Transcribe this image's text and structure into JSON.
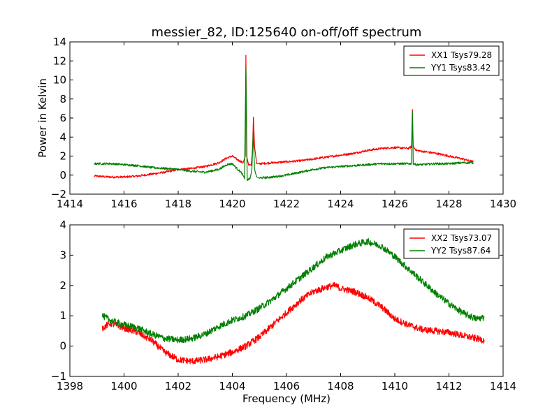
{
  "chart_data": [
    {
      "type": "line",
      "title": "messier_82, ID:125640 on-off/off spectrum",
      "xlabel": "",
      "ylabel": "Power in Kelvin",
      "xlim": [
        1414,
        1430
      ],
      "ylim": [
        -2,
        14
      ],
      "xticks": [
        "1414",
        "1416",
        "1418",
        "1420",
        "1422",
        "1424",
        "1426",
        "1428",
        "1430"
      ],
      "yticks": [
        "−2",
        "0",
        "2",
        "4",
        "6",
        "8",
        "10",
        "12",
        "14"
      ],
      "legend_position": "upper right",
      "series": [
        {
          "name": "XX1 Tsys79.28",
          "color": "#ff0000",
          "x": [
            1414.9,
            1415.5,
            1416.0,
            1416.5,
            1417.0,
            1417.5,
            1418.0,
            1418.5,
            1419.0,
            1419.5,
            1419.8,
            1420.0,
            1420.2,
            1420.4,
            1420.48,
            1420.5,
            1420.53,
            1420.6,
            1420.7,
            1420.75,
            1420.78,
            1420.82,
            1420.9,
            1421.0,
            1421.5,
            1422.0,
            1422.5,
            1423.0,
            1423.5,
            1424.0,
            1424.5,
            1425.0,
            1425.5,
            1426.0,
            1426.5,
            1426.62,
            1426.65,
            1426.68,
            1426.8,
            1427.0,
            1427.5,
            1428.0,
            1428.5,
            1428.9
          ],
          "y": [
            -0.1,
            -0.2,
            -0.2,
            -0.1,
            0.1,
            0.3,
            0.6,
            0.7,
            0.9,
            1.3,
            1.8,
            2.0,
            1.6,
            1.3,
            2.0,
            12.6,
            2.0,
            1.1,
            1.0,
            3.0,
            6.1,
            3.0,
            1.2,
            1.2,
            1.3,
            1.4,
            1.5,
            1.7,
            1.9,
            2.1,
            2.3,
            2.6,
            2.8,
            2.9,
            2.8,
            3.0,
            6.9,
            3.0,
            2.6,
            2.5,
            2.3,
            2.0,
            1.7,
            1.4
          ]
        },
        {
          "name": "YY1 Tsys83.42",
          "color": "#008000",
          "x": [
            1414.9,
            1415.5,
            1416.0,
            1416.5,
            1417.0,
            1417.5,
            1418.0,
            1418.5,
            1419.0,
            1419.5,
            1419.8,
            1420.0,
            1420.2,
            1420.35,
            1420.45,
            1420.5,
            1420.55,
            1420.65,
            1420.72,
            1420.77,
            1420.82,
            1420.9,
            1421.0,
            1421.5,
            1422.0,
            1422.5,
            1423.0,
            1423.5,
            1424.0,
            1424.5,
            1425.0,
            1425.5,
            1426.0,
            1426.5,
            1426.62,
            1426.65,
            1426.68,
            1426.8,
            1427.0,
            1427.5,
            1428.0,
            1428.5,
            1428.9
          ],
          "y": [
            1.2,
            1.2,
            1.1,
            1.0,
            0.8,
            0.7,
            0.6,
            0.4,
            0.3,
            0.6,
            1.1,
            1.2,
            0.6,
            0.2,
            -0.4,
            11.2,
            -0.5,
            -0.4,
            0.5,
            4.5,
            0.6,
            -0.2,
            -0.3,
            -0.2,
            0.0,
            0.3,
            0.6,
            0.8,
            0.9,
            1.0,
            1.1,
            1.2,
            1.2,
            1.2,
            1.2,
            6.7,
            1.2,
            1.1,
            1.1,
            1.2,
            1.2,
            1.3,
            1.3
          ]
        }
      ]
    },
    {
      "type": "line",
      "title": "",
      "xlabel": "Frequency (MHz)",
      "ylabel": "",
      "xlim": [
        1398,
        1414
      ],
      "ylim": [
        -1,
        4
      ],
      "xticks": [
        "1398",
        "1400",
        "1402",
        "1404",
        "1406",
        "1408",
        "1410",
        "1412",
        "1414"
      ],
      "yticks": [
        "−1",
        "0",
        "1",
        "2",
        "3",
        "4"
      ],
      "legend_position": "upper right",
      "series": [
        {
          "name": "XX2 Tsys73.07",
          "color": "#ff0000",
          "x": [
            1399.2,
            1399.5,
            1400.0,
            1400.5,
            1401.0,
            1401.5,
            1402.0,
            1402.5,
            1403.0,
            1403.5,
            1404.0,
            1404.5,
            1405.0,
            1405.5,
            1406.0,
            1406.5,
            1407.0,
            1407.5,
            1407.8,
            1408.0,
            1408.5,
            1409.0,
            1409.5,
            1410.0,
            1410.5,
            1411.0,
            1411.5,
            1412.0,
            1412.5,
            1413.0,
            1413.3
          ],
          "y": [
            0.6,
            0.75,
            0.6,
            0.45,
            0.2,
            -0.2,
            -0.45,
            -0.5,
            -0.45,
            -0.35,
            -0.2,
            0.0,
            0.3,
            0.7,
            1.1,
            1.5,
            1.8,
            1.95,
            2.0,
            1.9,
            1.8,
            1.6,
            1.3,
            0.9,
            0.7,
            0.55,
            0.5,
            0.45,
            0.35,
            0.25,
            0.2
          ]
        },
        {
          "name": "YY2 Tsys87.64",
          "color": "#008000",
          "x": [
            1399.2,
            1399.5,
            1400.0,
            1400.5,
            1401.0,
            1401.5,
            1402.0,
            1402.5,
            1403.0,
            1403.5,
            1404.0,
            1404.5,
            1405.0,
            1405.5,
            1406.0,
            1406.5,
            1407.0,
            1407.5,
            1408.0,
            1408.5,
            1409.0,
            1409.5,
            1410.0,
            1410.5,
            1411.0,
            1411.5,
            1412.0,
            1412.5,
            1413.0,
            1413.3
          ],
          "y": [
            1.0,
            0.85,
            0.7,
            0.6,
            0.4,
            0.25,
            0.2,
            0.25,
            0.4,
            0.65,
            0.85,
            1.0,
            1.25,
            1.55,
            1.9,
            2.25,
            2.6,
            2.95,
            3.15,
            3.35,
            3.45,
            3.3,
            2.95,
            2.55,
            2.15,
            1.75,
            1.4,
            1.1,
            0.9,
            0.95
          ]
        }
      ]
    }
  ]
}
